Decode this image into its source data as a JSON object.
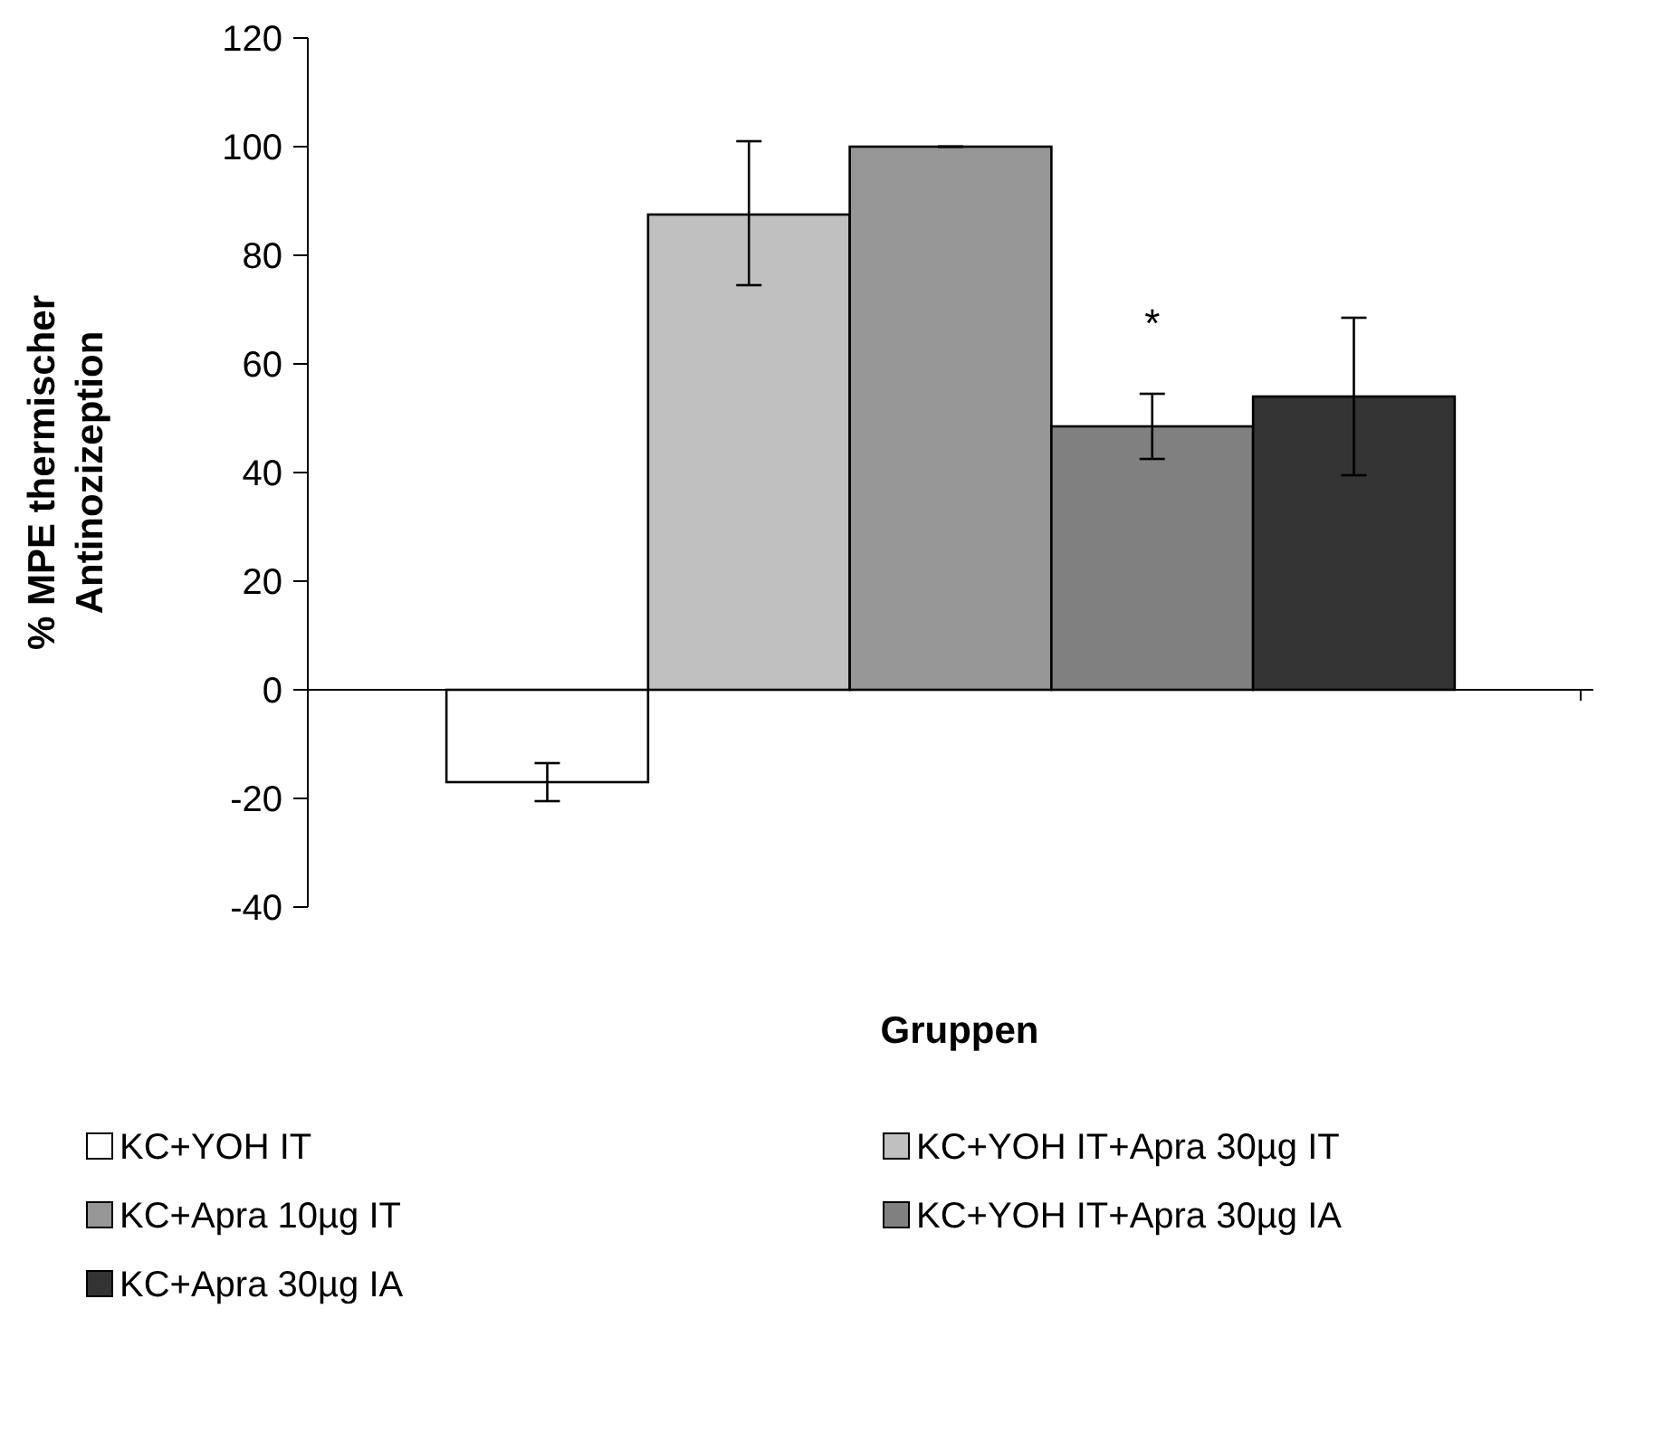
{
  "chart_data": {
    "type": "bar",
    "xlabel": "Gruppen",
    "ylabel": "% MPE thermischer Antinozizeption",
    "categories": [
      null
    ],
    "series": [
      {
        "name": "KC+YOH IT",
        "color": "#ffffff",
        "values": [
          -17
        ],
        "errors": [
          [
            -20.5,
            -13.5
          ]
        ]
      },
      {
        "name": "KC+YOH IT+Apra 30µg IT",
        "color": "#c0c0c0",
        "values": [
          87.5
        ],
        "errors": [
          [
            74.5,
            101
          ]
        ]
      },
      {
        "name": "KC+Apra 10µg IT",
        "color": "#969696",
        "values": [
          100
        ],
        "errors": [
          [
            100,
            100
          ]
        ]
      },
      {
        "name": "KC+YOH IT+Apra 30µg IA",
        "color": "#808080",
        "values": [
          48.5
        ],
        "errors": [
          [
            42.5,
            54.5
          ]
        ]
      },
      {
        "name": "KC+Apra 30µg IA",
        "color": "#333333",
        "values": [
          54
        ],
        "errors": [
          [
            39.5,
            68.5
          ]
        ]
      }
    ],
    "ylim": [
      -40,
      120
    ],
    "yticks": [
      -40,
      -20,
      0,
      20,
      40,
      60,
      80,
      100,
      120
    ],
    "legend": "bottom",
    "annotations": [
      "*"
    ]
  }
}
